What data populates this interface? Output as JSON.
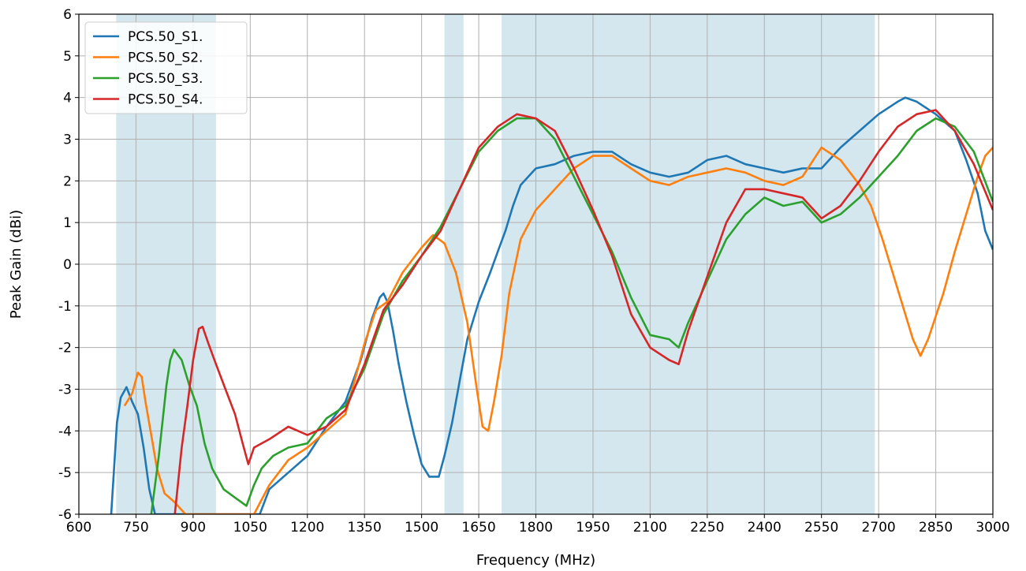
{
  "chart_data": {
    "type": "line",
    "title": "",
    "xlabel": "Frequency (MHz)",
    "ylabel": "Peak Gain (dBi)",
    "xlim": [
      600,
      3000
    ],
    "ylim": [
      -6,
      6
    ],
    "x_ticks": [
      600,
      750,
      900,
      1050,
      1200,
      1350,
      1500,
      1650,
      1800,
      1950,
      2100,
      2250,
      2400,
      2550,
      2700,
      2850,
      3000
    ],
    "y_ticks": [
      -6,
      -5,
      -4,
      -3,
      -2,
      -1,
      0,
      1,
      2,
      3,
      4,
      5,
      6
    ],
    "grid": true,
    "legend_position": "top-left",
    "shaded_bands": [
      [
        698,
        960
      ],
      [
        1560,
        1610
      ],
      [
        1710,
        2690
      ]
    ],
    "band_color": "#d4e7ef",
    "series": [
      {
        "name": "PCS.50_S1.",
        "color": "#1f77b4",
        "points": [
          [
            685,
            -6.0
          ],
          [
            700,
            -3.8
          ],
          [
            710,
            -3.2
          ],
          [
            725,
            -2.95
          ],
          [
            740,
            -3.3
          ],
          [
            755,
            -3.6
          ],
          [
            770,
            -4.4
          ],
          [
            785,
            -5.4
          ],
          [
            800,
            -6.0
          ],
          [
            1075,
            -6.0
          ],
          [
            1100,
            -5.4
          ],
          [
            1150,
            -5.0
          ],
          [
            1200,
            -4.6
          ],
          [
            1250,
            -3.9
          ],
          [
            1300,
            -3.3
          ],
          [
            1340,
            -2.3
          ],
          [
            1370,
            -1.3
          ],
          [
            1390,
            -0.8
          ],
          [
            1400,
            -0.7
          ],
          [
            1410,
            -0.9
          ],
          [
            1425,
            -1.6
          ],
          [
            1440,
            -2.4
          ],
          [
            1460,
            -3.3
          ],
          [
            1480,
            -4.1
          ],
          [
            1500,
            -4.8
          ],
          [
            1520,
            -5.1
          ],
          [
            1545,
            -5.1
          ],
          [
            1560,
            -4.6
          ],
          [
            1580,
            -3.8
          ],
          [
            1600,
            -2.8
          ],
          [
            1620,
            -1.8
          ],
          [
            1650,
            -0.9
          ],
          [
            1680,
            -0.2
          ],
          [
            1700,
            0.3
          ],
          [
            1720,
            0.8
          ],
          [
            1740,
            1.4
          ],
          [
            1760,
            1.9
          ],
          [
            1780,
            2.1
          ],
          [
            1800,
            2.3
          ],
          [
            1850,
            2.4
          ],
          [
            1900,
            2.6
          ],
          [
            1950,
            2.7
          ],
          [
            2000,
            2.7
          ],
          [
            2050,
            2.4
          ],
          [
            2100,
            2.2
          ],
          [
            2150,
            2.1
          ],
          [
            2200,
            2.2
          ],
          [
            2250,
            2.5
          ],
          [
            2300,
            2.6
          ],
          [
            2350,
            2.4
          ],
          [
            2400,
            2.3
          ],
          [
            2450,
            2.2
          ],
          [
            2500,
            2.3
          ],
          [
            2550,
            2.3
          ],
          [
            2600,
            2.8
          ],
          [
            2650,
            3.2
          ],
          [
            2700,
            3.6
          ],
          [
            2750,
            3.9
          ],
          [
            2770,
            4.0
          ],
          [
            2800,
            3.9
          ],
          [
            2850,
            3.6
          ],
          [
            2900,
            3.2
          ],
          [
            2930,
            2.5
          ],
          [
            2960,
            1.7
          ],
          [
            2980,
            0.8
          ],
          [
            3000,
            0.35
          ]
        ]
      },
      {
        "name": "PCS.50_S2.",
        "color": "#ff7f0e",
        "points": [
          [
            720,
            -3.4
          ],
          [
            740,
            -3.1
          ],
          [
            755,
            -2.6
          ],
          [
            765,
            -2.7
          ],
          [
            775,
            -3.3
          ],
          [
            790,
            -4.1
          ],
          [
            805,
            -4.9
          ],
          [
            825,
            -5.5
          ],
          [
            850,
            -5.7
          ],
          [
            880,
            -6.0
          ],
          [
            1060,
            -6.0
          ],
          [
            1100,
            -5.3
          ],
          [
            1150,
            -4.7
          ],
          [
            1200,
            -4.4
          ],
          [
            1250,
            -4.0
          ],
          [
            1300,
            -3.6
          ],
          [
            1330,
            -2.6
          ],
          [
            1350,
            -1.9
          ],
          [
            1380,
            -1.1
          ],
          [
            1410,
            -0.9
          ],
          [
            1450,
            -0.2
          ],
          [
            1500,
            0.4
          ],
          [
            1530,
            0.7
          ],
          [
            1560,
            0.5
          ],
          [
            1590,
            -0.2
          ],
          [
            1620,
            -1.4
          ],
          [
            1645,
            -3.0
          ],
          [
            1660,
            -3.9
          ],
          [
            1675,
            -4.0
          ],
          [
            1690,
            -3.3
          ],
          [
            1710,
            -2.2
          ],
          [
            1730,
            -0.7
          ],
          [
            1760,
            0.6
          ],
          [
            1800,
            1.3
          ],
          [
            1850,
            1.8
          ],
          [
            1900,
            2.3
          ],
          [
            1950,
            2.6
          ],
          [
            2000,
            2.6
          ],
          [
            2050,
            2.3
          ],
          [
            2100,
            2.0
          ],
          [
            2150,
            1.9
          ],
          [
            2200,
            2.1
          ],
          [
            2250,
            2.2
          ],
          [
            2300,
            2.3
          ],
          [
            2350,
            2.2
          ],
          [
            2400,
            2.0
          ],
          [
            2450,
            1.9
          ],
          [
            2500,
            2.1
          ],
          [
            2550,
            2.8
          ],
          [
            2600,
            2.5
          ],
          [
            2650,
            1.9
          ],
          [
            2680,
            1.4
          ],
          [
            2710,
            0.6
          ],
          [
            2750,
            -0.6
          ],
          [
            2790,
            -1.8
          ],
          [
            2810,
            -2.2
          ],
          [
            2830,
            -1.8
          ],
          [
            2870,
            -0.7
          ],
          [
            2900,
            0.3
          ],
          [
            2930,
            1.2
          ],
          [
            2960,
            2.1
          ],
          [
            2980,
            2.6
          ],
          [
            3000,
            2.8
          ]
        ]
      },
      {
        "name": "PCS.50_S3.",
        "color": "#2ca02c",
        "points": [
          [
            790,
            -6.0
          ],
          [
            810,
            -4.6
          ],
          [
            830,
            -2.9
          ],
          [
            840,
            -2.3
          ],
          [
            850,
            -2.05
          ],
          [
            870,
            -2.3
          ],
          [
            890,
            -2.9
          ],
          [
            910,
            -3.4
          ],
          [
            930,
            -4.3
          ],
          [
            950,
            -4.9
          ],
          [
            980,
            -5.4
          ],
          [
            1010,
            -5.6
          ],
          [
            1040,
            -5.8
          ],
          [
            1060,
            -5.3
          ],
          [
            1080,
            -4.9
          ],
          [
            1110,
            -4.6
          ],
          [
            1150,
            -4.4
          ],
          [
            1200,
            -4.3
          ],
          [
            1250,
            -3.7
          ],
          [
            1300,
            -3.4
          ],
          [
            1350,
            -2.5
          ],
          [
            1400,
            -1.2
          ],
          [
            1450,
            -0.4
          ],
          [
            1500,
            0.2
          ],
          [
            1550,
            0.9
          ],
          [
            1600,
            1.8
          ],
          [
            1650,
            2.7
          ],
          [
            1700,
            3.2
          ],
          [
            1750,
            3.5
          ],
          [
            1800,
            3.5
          ],
          [
            1850,
            3.0
          ],
          [
            1900,
            2.1
          ],
          [
            1950,
            1.2
          ],
          [
            2000,
            0.3
          ],
          [
            2050,
            -0.8
          ],
          [
            2100,
            -1.7
          ],
          [
            2150,
            -1.8
          ],
          [
            2175,
            -2.0
          ],
          [
            2200,
            -1.4
          ],
          [
            2250,
            -0.4
          ],
          [
            2300,
            0.6
          ],
          [
            2350,
            1.2
          ],
          [
            2400,
            1.6
          ],
          [
            2450,
            1.4
          ],
          [
            2500,
            1.5
          ],
          [
            2550,
            1.0
          ],
          [
            2600,
            1.2
          ],
          [
            2650,
            1.6
          ],
          [
            2700,
            2.1
          ],
          [
            2750,
            2.6
          ],
          [
            2800,
            3.2
          ],
          [
            2850,
            3.5
          ],
          [
            2900,
            3.3
          ],
          [
            2950,
            2.7
          ],
          [
            3000,
            1.5
          ]
        ]
      },
      {
        "name": "PCS.50_S4.",
        "color": "#d62728",
        "points": [
          [
            852,
            -6.0
          ],
          [
            870,
            -4.4
          ],
          [
            885,
            -3.4
          ],
          [
            900,
            -2.3
          ],
          [
            915,
            -1.55
          ],
          [
            925,
            -1.5
          ],
          [
            940,
            -1.9
          ],
          [
            960,
            -2.4
          ],
          [
            985,
            -3.0
          ],
          [
            1010,
            -3.6
          ],
          [
            1030,
            -4.3
          ],
          [
            1045,
            -4.8
          ],
          [
            1060,
            -4.4
          ],
          [
            1100,
            -4.2
          ],
          [
            1150,
            -3.9
          ],
          [
            1200,
            -4.1
          ],
          [
            1250,
            -3.9
          ],
          [
            1300,
            -3.5
          ],
          [
            1350,
            -2.4
          ],
          [
            1400,
            -1.1
          ],
          [
            1450,
            -0.5
          ],
          [
            1500,
            0.2
          ],
          [
            1550,
            0.8
          ],
          [
            1600,
            1.8
          ],
          [
            1650,
            2.8
          ],
          [
            1700,
            3.3
          ],
          [
            1750,
            3.6
          ],
          [
            1800,
            3.5
          ],
          [
            1850,
            3.2
          ],
          [
            1900,
            2.3
          ],
          [
            1950,
            1.3
          ],
          [
            2000,
            0.2
          ],
          [
            2050,
            -1.2
          ],
          [
            2100,
            -2.0
          ],
          [
            2150,
            -2.3
          ],
          [
            2175,
            -2.4
          ],
          [
            2200,
            -1.6
          ],
          [
            2250,
            -0.3
          ],
          [
            2300,
            1.0
          ],
          [
            2350,
            1.8
          ],
          [
            2400,
            1.8
          ],
          [
            2450,
            1.7
          ],
          [
            2500,
            1.6
          ],
          [
            2550,
            1.1
          ],
          [
            2600,
            1.4
          ],
          [
            2650,
            2.0
          ],
          [
            2700,
            2.7
          ],
          [
            2750,
            3.3
          ],
          [
            2800,
            3.6
          ],
          [
            2850,
            3.7
          ],
          [
            2900,
            3.2
          ],
          [
            2950,
            2.4
          ],
          [
            3000,
            1.3
          ]
        ]
      }
    ]
  }
}
